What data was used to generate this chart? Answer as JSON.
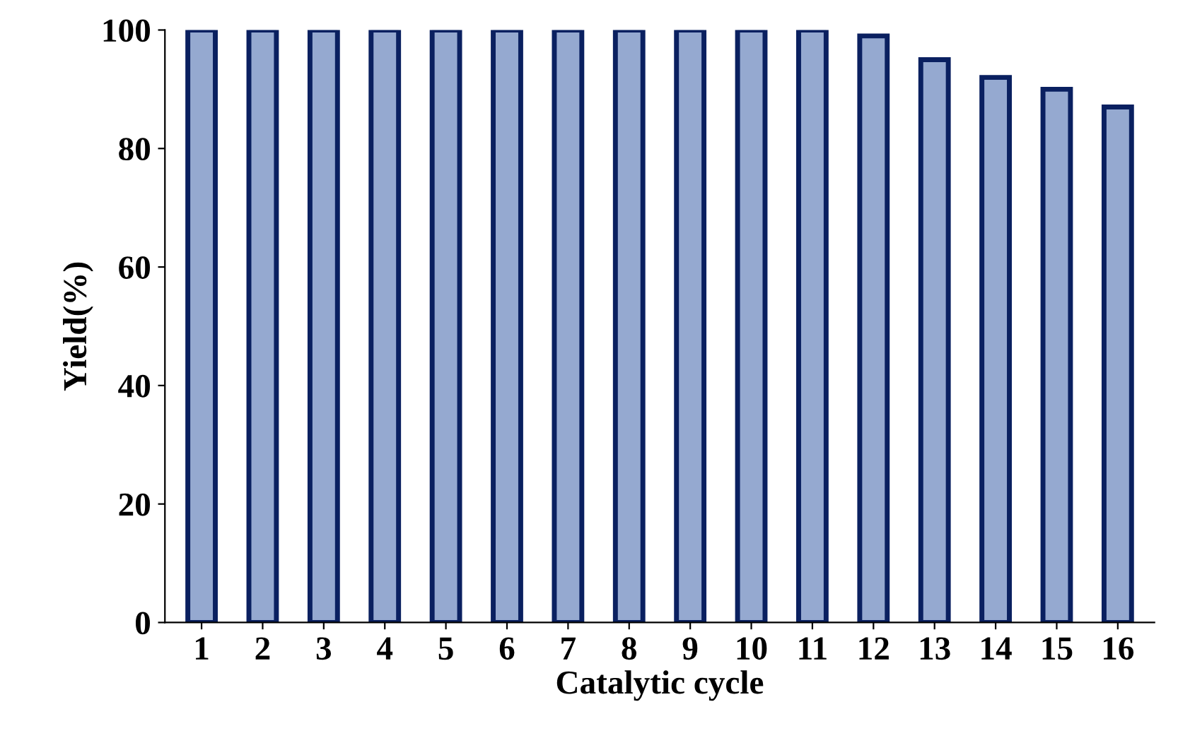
{
  "chart_data": {
    "type": "bar",
    "xlabel": "Catalytic cycle",
    "ylabel": "Yield(%)",
    "categories": [
      "1",
      "2",
      "3",
      "4",
      "5",
      "6",
      "7",
      "8",
      "9",
      "10",
      "11",
      "12",
      "13",
      "14",
      "15",
      "16"
    ],
    "series": [
      {
        "color": "#95a9d0",
        "values": [
          100,
          100,
          100,
          100,
          100,
          100,
          100,
          100,
          100,
          100,
          100,
          99,
          95,
          92,
          90,
          87
        ]
      }
    ],
    "ylim": [
      0,
      100
    ],
    "yticks": [
      0,
      20,
      40,
      60,
      80,
      100
    ],
    "grid": false,
    "legend": false
  }
}
